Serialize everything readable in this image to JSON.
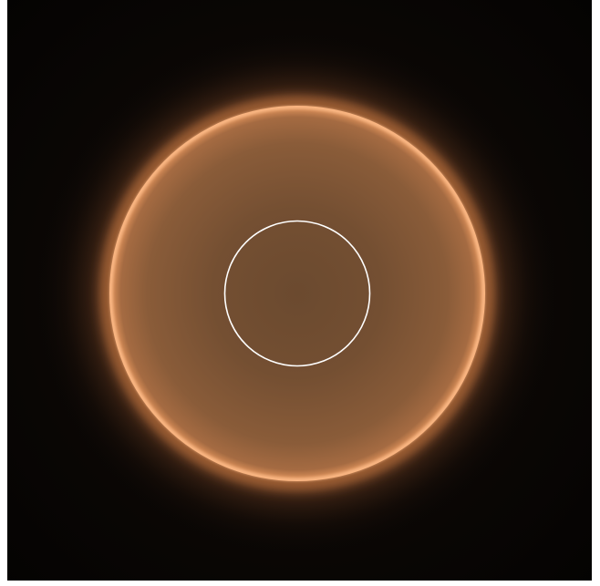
{
  "image": {
    "subject": "glowing-ring",
    "colors": {
      "background_center": "#15100b",
      "background_edge": "#050302",
      "disc_inner": "#6e4b2f",
      "disc_mid": "#7d5434",
      "disc_outer": "#a36a41",
      "rim": "#ffb47e",
      "halo": "#e48a4a",
      "inner_circle_stroke": "#ffffff"
    }
  }
}
